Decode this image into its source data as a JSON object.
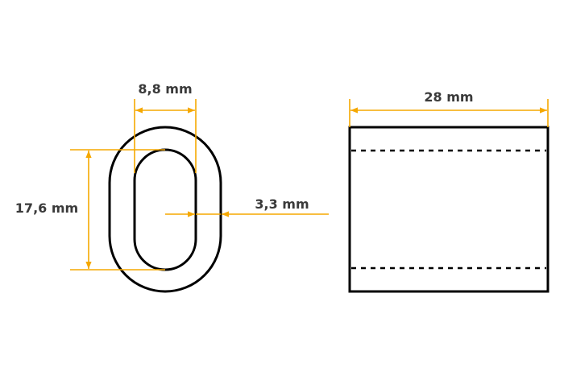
{
  "labels": {
    "width_inner": "8,8 mm",
    "height_inner": "17,6 mm",
    "wall_thickness": "3,3 mm",
    "length": "28 mm"
  },
  "colors": {
    "dimension": "#F5A800",
    "outline": "#000000",
    "text": "#3a3a3a"
  }
}
